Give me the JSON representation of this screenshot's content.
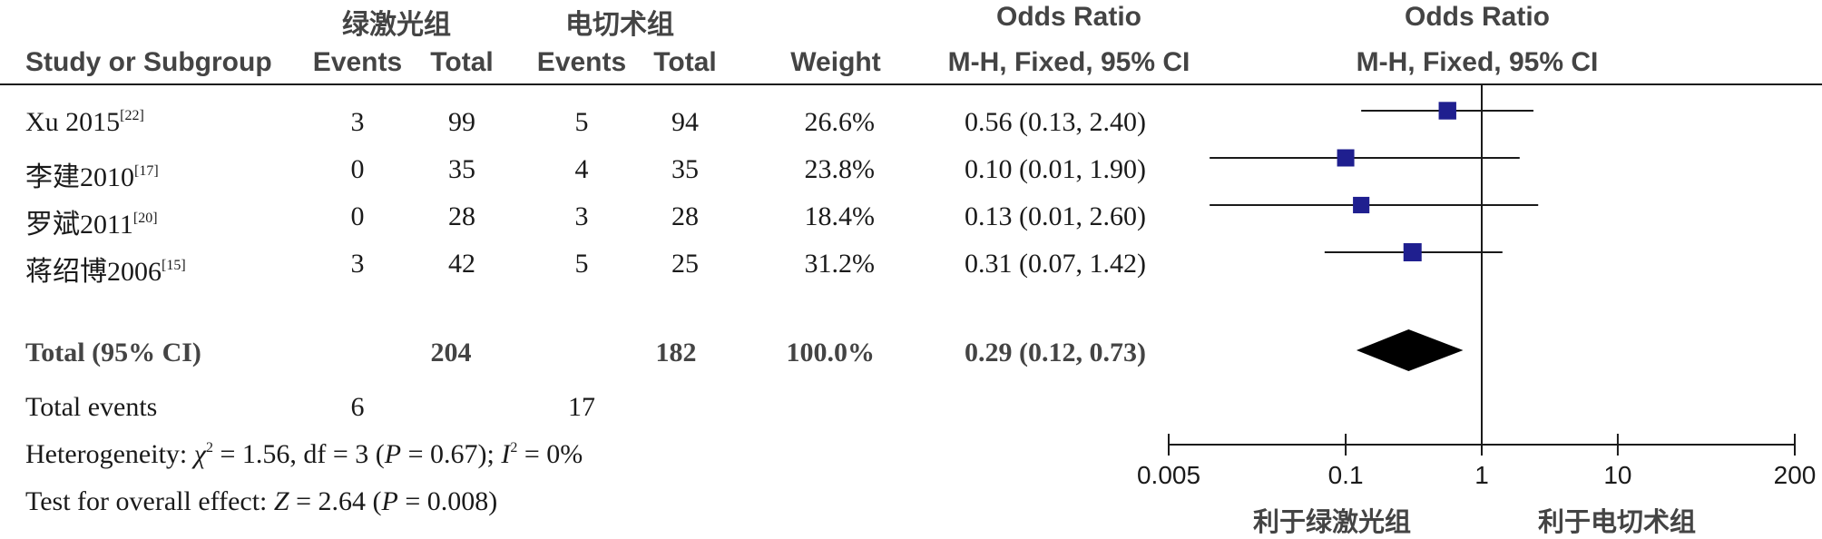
{
  "header": {
    "group1": "绿激光组",
    "group2": "电切术组",
    "or_col_title": "Odds Ratio",
    "or_col_method": "M-H, Fixed, 95% CI",
    "plot_title": "Odds Ratio",
    "plot_method": "M-H, Fixed, 95% CI",
    "study_col": "Study or Subgroup",
    "events1": "Events",
    "total1": "Total",
    "events2": "Events",
    "total2": "Total",
    "weight": "Weight"
  },
  "rows": [
    {
      "study": "Xu 2015",
      "ref": "[22]",
      "events1": "3",
      "total1": "99",
      "events2": "5",
      "total2": "94",
      "weight": "26.6%",
      "ci_text": "0.56 (0.13, 2.40)"
    },
    {
      "study": "李建2010",
      "ref": "[17]",
      "events1": "0",
      "total1": "35",
      "events2": "4",
      "total2": "35",
      "weight": "23.8%",
      "ci_text": "0.10 (0.01, 1.90)"
    },
    {
      "study": "罗斌2011",
      "ref": "[20]",
      "events1": "0",
      "total1": "28",
      "events2": "3",
      "total2": "28",
      "weight": "18.4%",
      "ci_text": "0.13 (0.01, 2.60)"
    },
    {
      "study": "蒋绍博2006",
      "ref": "[15]",
      "events1": "3",
      "total1": "42",
      "events2": "5",
      "total2": "25",
      "weight": "31.2%",
      "ci_text": "0.31 (0.07, 1.42)"
    }
  ],
  "total": {
    "label": "Total (95% CI)",
    "total1": "204",
    "total2": "182",
    "weight": "100.0%",
    "ci_text": "0.29 (0.12, 0.73)"
  },
  "total_events": {
    "label": "Total events",
    "events1": "6",
    "events2": "17"
  },
  "heterogeneity": {
    "prefix": "Heterogeneity: ",
    "chi_sym": "χ",
    "sq": "2",
    "chi_val": " = 1.56, df = 3 (",
    "p_sym": "P",
    "p_val": " = 0.67); ",
    "i_sym": "I",
    "i_sq": "2",
    "i_val": " = 0%"
  },
  "overall": {
    "prefix": "Test for overall effect: ",
    "z_sym": "Z",
    "z_val": " = 2.64 (",
    "p_sym": "P",
    "p_val": " = 0.008)"
  },
  "axis": {
    "ticks": [
      "0.005",
      "0.1",
      "1",
      "10",
      "200"
    ],
    "favours_left": "利于绿激光组",
    "favours_right": "利于电切术组"
  },
  "colors": {
    "marker": "#1f1f8f",
    "line": "#1a1a1a"
  },
  "chart_data": {
    "type": "forest",
    "scale": "log",
    "xlim": [
      0.005,
      200
    ],
    "x_ticks": [
      0.005,
      0.1,
      1,
      10,
      200
    ],
    "reference_line": 1,
    "studies": [
      {
        "name": "Xu 2015",
        "or": 0.56,
        "lo": 0.13,
        "hi": 2.4,
        "weight": 26.6
      },
      {
        "name": "李建2010",
        "or": 0.1,
        "lo": 0.01,
        "hi": 1.9,
        "weight": 23.8
      },
      {
        "name": "罗斌2011",
        "or": 0.13,
        "lo": 0.01,
        "hi": 2.6,
        "weight": 18.4
      },
      {
        "name": "蒋绍博2006",
        "or": 0.31,
        "lo": 0.07,
        "hi": 1.42,
        "weight": 31.2
      }
    ],
    "pooled": {
      "or": 0.29,
      "lo": 0.12,
      "hi": 0.73
    }
  }
}
